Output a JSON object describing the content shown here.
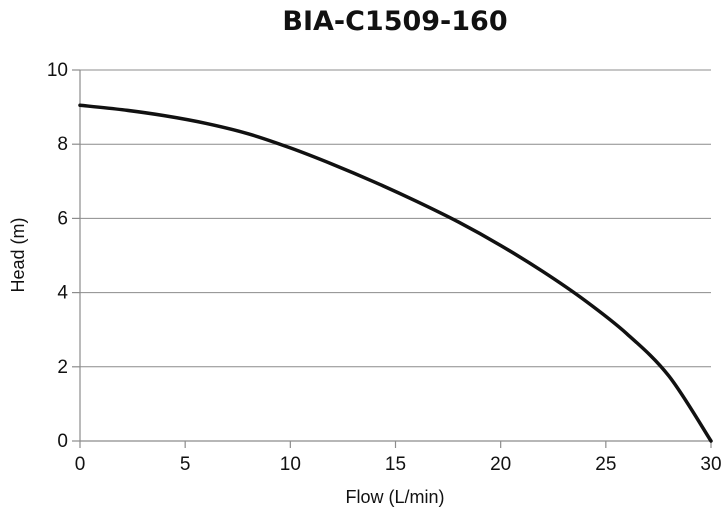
{
  "chart_data": {
    "type": "line",
    "title": "BIA-C1509-160",
    "xlabel": "Flow (L/min)",
    "ylabel": "Head (m)",
    "xlim": [
      0,
      30
    ],
    "ylim": [
      0,
      10
    ],
    "xticks": [
      "0",
      "5",
      "10",
      "15",
      "20",
      "25",
      "30"
    ],
    "yticks": [
      "0",
      "2",
      "4",
      "6",
      "8",
      "10"
    ],
    "grid": "horizontal",
    "legend": "none",
    "series": [
      {
        "color": "#111111",
        "x": [
          0,
          2,
          4,
          6,
          8,
          10,
          12,
          14,
          16,
          18,
          20,
          22,
          24,
          26,
          28,
          30
        ],
        "y": [
          9.05,
          8.93,
          8.77,
          8.56,
          8.28,
          7.9,
          7.46,
          6.98,
          6.46,
          5.9,
          5.27,
          4.57,
          3.79,
          2.89,
          1.75,
          0.0
        ]
      }
    ]
  }
}
